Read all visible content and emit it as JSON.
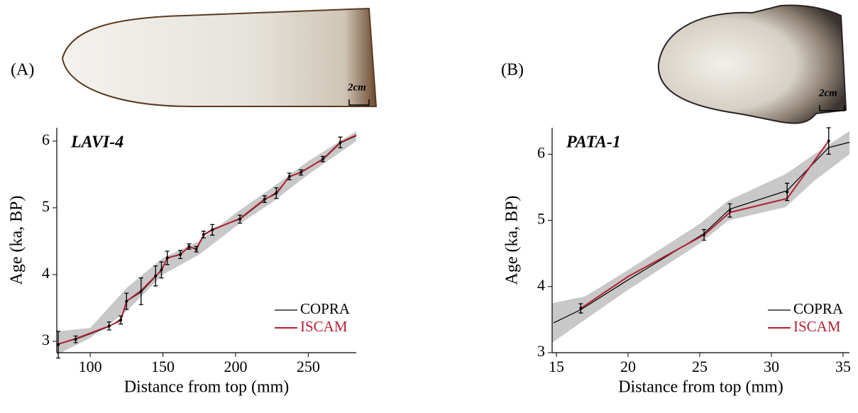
{
  "chart_data": [
    {
      "type": "line",
      "title": "LAVI-4",
      "panel_label": "(A)",
      "scale_label": "2cm",
      "xlabel": "Distance from top (mm)",
      "ylabel": "Age (ka, BP)",
      "xlim": [
        77,
        283
      ],
      "ylim": [
        2.83,
        6.2
      ],
      "xticks": [
        100,
        150,
        200,
        250
      ],
      "yticks": [
        3,
        4,
        5,
        6
      ],
      "legend": "lower right",
      "band": {
        "color": "#c8c8c8",
        "x": [
          77,
          100,
          125,
          150,
          175,
          200,
          225,
          250,
          283
        ],
        "lower": [
          2.8,
          3.05,
          3.45,
          4.0,
          4.3,
          4.72,
          5.08,
          5.5,
          6.0
        ],
        "upper": [
          3.15,
          3.2,
          3.8,
          4.25,
          4.5,
          4.92,
          5.3,
          5.7,
          6.15
        ]
      },
      "points": {
        "color": "#000000",
        "x": [
          78,
          90,
          113,
          121,
          125,
          135,
          145,
          149,
          153,
          162,
          168,
          173,
          178,
          184,
          203,
          220,
          228,
          237,
          245,
          260,
          272
        ],
        "values": [
          2.95,
          3.03,
          3.23,
          3.32,
          3.6,
          3.75,
          3.98,
          4.07,
          4.25,
          4.3,
          4.42,
          4.38,
          4.6,
          4.67,
          4.83,
          5.13,
          5.22,
          5.47,
          5.53,
          5.73,
          5.98
        ],
        "errors": [
          0.2,
          0.05,
          0.06,
          0.06,
          0.12,
          0.2,
          0.15,
          0.12,
          0.1,
          0.06,
          0.04,
          0.04,
          0.05,
          0.08,
          0.06,
          0.05,
          0.08,
          0.05,
          0.04,
          0.04,
          0.08
        ]
      },
      "series": [
        {
          "name": "COPRA",
          "color": "#000000",
          "x": [
            77,
            90,
            113,
            121,
            125,
            135,
            145,
            149,
            153,
            162,
            168,
            173,
            178,
            184,
            203,
            220,
            228,
            237,
            245,
            260,
            272,
            283
          ],
          "values": [
            2.96,
            3.03,
            3.22,
            3.33,
            3.6,
            3.74,
            3.97,
            4.08,
            4.24,
            4.31,
            4.41,
            4.39,
            4.6,
            4.68,
            4.83,
            5.12,
            5.23,
            5.46,
            5.54,
            5.72,
            5.97,
            6.08
          ]
        },
        {
          "name": "ISCAM",
          "color": "#b22234",
          "x": [
            77,
            90,
            113,
            121,
            125,
            135,
            145,
            149,
            153,
            162,
            168,
            173,
            178,
            184,
            203,
            220,
            228,
            237,
            245,
            260,
            272,
            283
          ],
          "values": [
            2.95,
            3.04,
            3.23,
            3.31,
            3.6,
            3.76,
            3.98,
            4.06,
            4.25,
            4.3,
            4.42,
            4.38,
            4.59,
            4.67,
            4.84,
            5.13,
            5.21,
            5.47,
            5.53,
            5.73,
            5.98,
            6.09
          ]
        }
      ]
    },
    {
      "type": "line",
      "title": "PATA-1",
      "panel_label": "(B)",
      "scale_label": "2cm",
      "xlabel": "Distance from top (mm)",
      "ylabel": "Age (ka, BP)",
      "xlim": [
        14.7,
        35.45
      ],
      "ylim": [
        3,
        6.4
      ],
      "xticks": [
        15,
        20,
        25,
        30,
        35
      ],
      "yticks": [
        3,
        4,
        5,
        6
      ],
      "legend": "lower right",
      "band": {
        "color": "#c8c8c8",
        "x": [
          14.7,
          17,
          20,
          25,
          27,
          31,
          33,
          35.45
        ],
        "lower": [
          3.15,
          3.5,
          3.95,
          4.65,
          5.0,
          5.2,
          5.6,
          6.0
        ],
        "upper": [
          3.75,
          3.85,
          4.25,
          4.95,
          5.3,
          5.7,
          6.0,
          6.35
        ]
      },
      "points": {
        "color": "#000000",
        "x": [
          16.7,
          25.3,
          27.1,
          31.1,
          34
        ],
        "values": [
          3.67,
          4.78,
          5.15,
          5.43,
          6.2
        ],
        "errors": [
          0.07,
          0.08,
          0.1,
          0.13,
          0.2
        ]
      },
      "series": [
        {
          "name": "COPRA",
          "color": "#000000",
          "x": [
            14.8,
            16.7,
            20,
            25.3,
            27.1,
            31.1,
            34,
            35.45
          ],
          "values": [
            3.45,
            3.65,
            4.1,
            4.8,
            5.17,
            5.45,
            6.1,
            6.18
          ]
        },
        {
          "name": "ISCAM",
          "color": "#b22234",
          "x": [
            16.7,
            20,
            25.3,
            27.1,
            31.1,
            34
          ],
          "values": [
            3.67,
            4.15,
            4.78,
            5.12,
            5.33,
            6.2
          ]
        }
      ]
    }
  ]
}
